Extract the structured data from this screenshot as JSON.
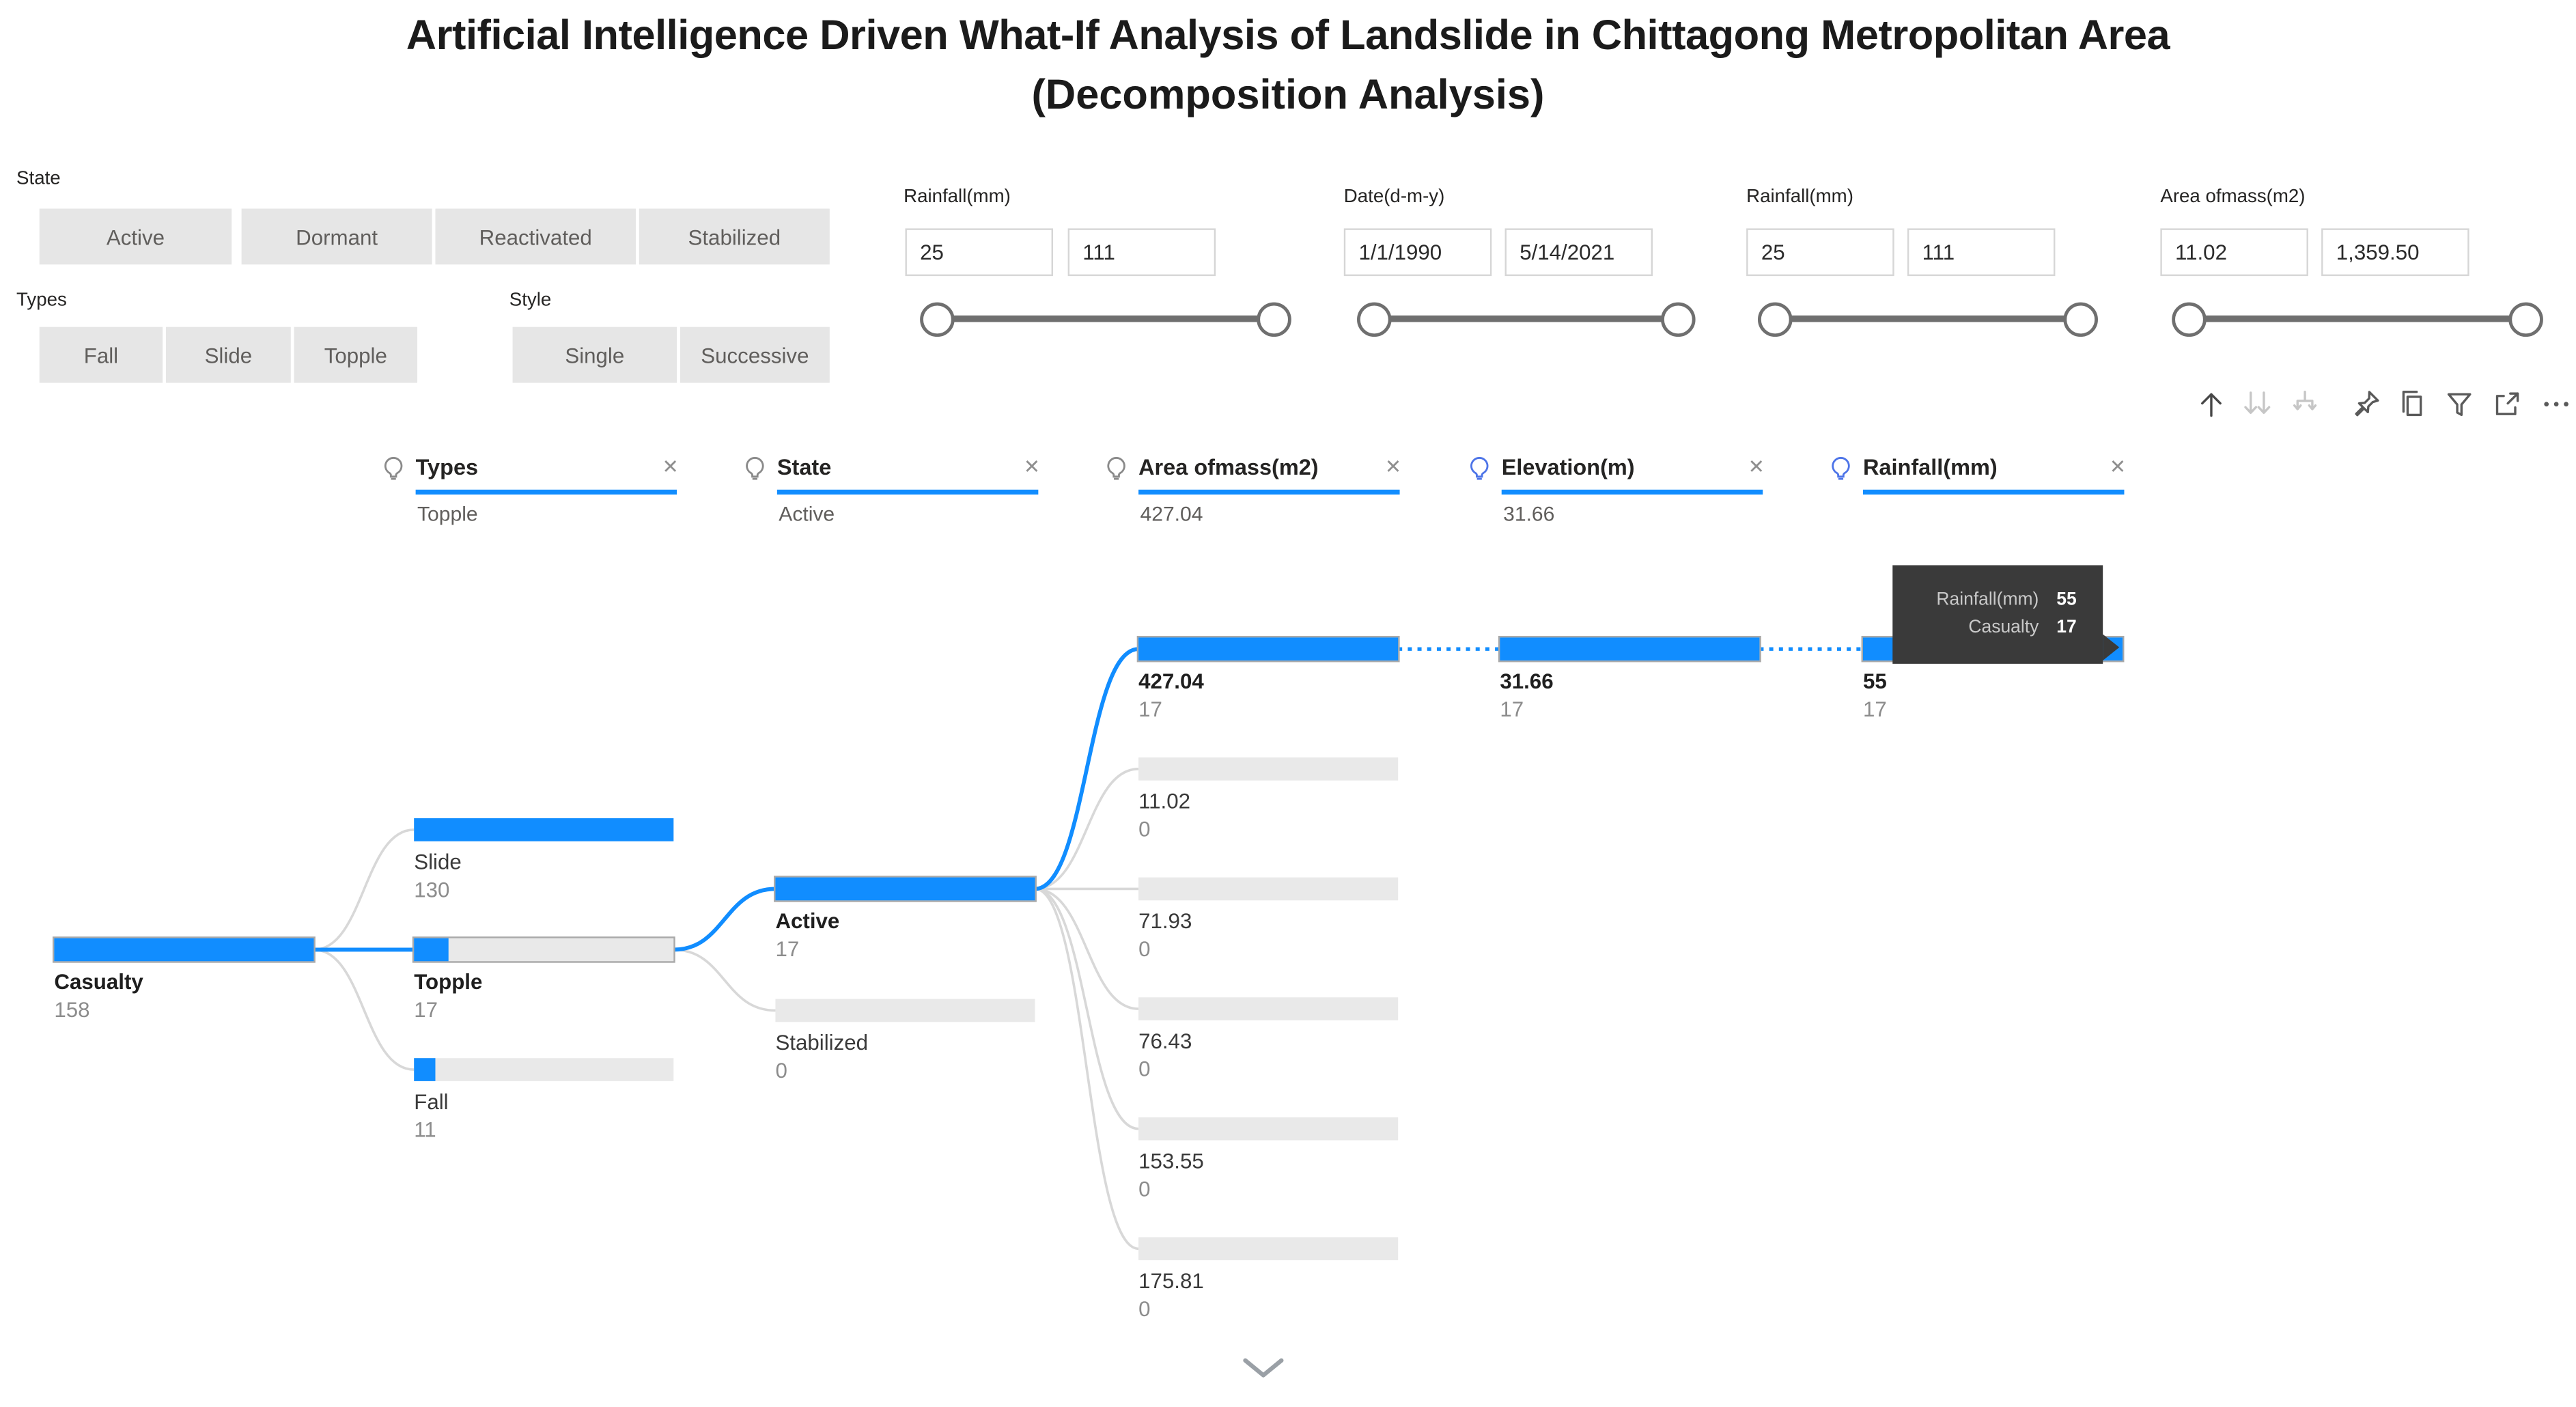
{
  "title": {
    "line1": "Artificial Intelligence Driven What-If Analysis of Landslide in Chittagong Metropolitan Area",
    "line2": "(Decomposition Analysis)"
  },
  "colors": {
    "accent": "#118DFF",
    "bar_empty": "#e9e9e9",
    "tooltip_bg": "#3a3a3a"
  },
  "slicers": [
    {
      "label": "State",
      "options": [
        "Active",
        "Dormant",
        "Reactivated",
        "Stabilized"
      ]
    },
    {
      "label": "Types",
      "options": [
        "Fall",
        "Slide",
        "Topple"
      ]
    },
    {
      "label": "Style",
      "options": [
        "Single",
        "Successive"
      ]
    }
  ],
  "range_sliders": [
    {
      "label": "Rainfall(mm)",
      "min": "25",
      "max": "111"
    },
    {
      "label": "Date(d-m-y)",
      "min": "1/1/1990",
      "max": "5/14/2021"
    },
    {
      "label": "Rainfall(mm)",
      "min": "25",
      "max": "111"
    },
    {
      "label": "Area ofmass(m2)",
      "min": "11.02",
      "max": "1,359.50"
    }
  ],
  "toolbar": {
    "icons": [
      "drill-up",
      "drill-down",
      "expand-next-level",
      "pin-visual",
      "copy-visual",
      "filters",
      "focus-mode",
      "more-options"
    ]
  },
  "tree": {
    "measure": "Casualty",
    "columns": [
      {
        "id": "types",
        "label": "Types",
        "selected_value": "Topple",
        "bulb": "gray"
      },
      {
        "id": "state",
        "label": "State",
        "selected_value": "Active",
        "bulb": "gray"
      },
      {
        "id": "area",
        "label": "Area ofmass(m2)",
        "selected_value": "427.04",
        "bulb": "gray"
      },
      {
        "id": "elevation",
        "label": "Elevation(m)",
        "selected_value": "31.66",
        "bulb": "blue"
      },
      {
        "id": "rainfall",
        "label": "Rainfall(mm)",
        "selected_value": "",
        "bulb": "blue"
      }
    ],
    "nodes": [
      {
        "id": "root",
        "col": "root",
        "row": 0,
        "label": "Casualty",
        "value": "158",
        "fill": 1,
        "selected": true,
        "bordered": true
      },
      {
        "id": "slide",
        "col": "types",
        "row": 0,
        "label": "Slide",
        "value": "130",
        "fill": 1,
        "selected": false,
        "bordered": false
      },
      {
        "id": "topple",
        "col": "types",
        "row": 1,
        "label": "Topple",
        "value": "17",
        "fill": 0.13,
        "selected": true,
        "bordered": true
      },
      {
        "id": "fall",
        "col": "types",
        "row": 2,
        "label": "Fall",
        "value": "11",
        "fill": 0.085,
        "selected": false,
        "bordered": false
      },
      {
        "id": "active",
        "col": "state",
        "row": 0,
        "label": "Active",
        "value": "17",
        "fill": 1,
        "selected": true,
        "bordered": true
      },
      {
        "id": "stabilized",
        "col": "state",
        "row": 1,
        "label": "Stabilized",
        "value": "0",
        "fill": 0,
        "selected": false,
        "bordered": false
      },
      {
        "id": "area-427",
        "col": "area",
        "row": 0,
        "label": "427.04",
        "value": "17",
        "fill": 1,
        "selected": true,
        "bordered": true
      },
      {
        "id": "area-11",
        "col": "area",
        "row": 1,
        "label": "11.02",
        "value": "0",
        "fill": 0,
        "selected": false,
        "bordered": false
      },
      {
        "id": "area-71",
        "col": "area",
        "row": 2,
        "label": "71.93",
        "value": "0",
        "fill": 0,
        "selected": false,
        "bordered": false
      },
      {
        "id": "area-76",
        "col": "area",
        "row": 3,
        "label": "76.43",
        "value": "0",
        "fill": 0,
        "selected": false,
        "bordered": false
      },
      {
        "id": "area-153",
        "col": "area",
        "row": 4,
        "label": "153.55",
        "value": "0",
        "fill": 0,
        "selected": false,
        "bordered": false
      },
      {
        "id": "area-175",
        "col": "area",
        "row": 5,
        "label": "175.81",
        "value": "0",
        "fill": 0,
        "selected": false,
        "bordered": false
      },
      {
        "id": "elev-31",
        "col": "elevation",
        "row": 0,
        "label": "31.66",
        "value": "17",
        "fill": 1,
        "selected": true,
        "bordered": true
      },
      {
        "id": "rain-55",
        "col": "rainfall",
        "row": 0,
        "label": "55",
        "value": "17",
        "fill": 1,
        "selected": true,
        "bordered": true
      }
    ],
    "edges": [
      {
        "from": "root",
        "to": "slide",
        "style": "normal"
      },
      {
        "from": "root",
        "to": "fall",
        "style": "normal"
      },
      {
        "from": "topple",
        "to": "stabilized",
        "style": "normal"
      },
      {
        "from": "active",
        "to": "area-11",
        "style": "normal"
      },
      {
        "from": "active",
        "to": "area-71",
        "style": "normal"
      },
      {
        "from": "active",
        "to": "area-76",
        "style": "normal"
      },
      {
        "from": "active",
        "to": "area-153",
        "style": "normal"
      },
      {
        "from": "active",
        "to": "area-175",
        "style": "normal"
      },
      {
        "from": "root",
        "to": "topple",
        "style": "highlight"
      },
      {
        "from": "topple",
        "to": "active",
        "style": "highlight"
      },
      {
        "from": "active",
        "to": "area-427",
        "style": "highlight"
      },
      {
        "from": "area-427",
        "to": "elev-31",
        "style": "dotted"
      },
      {
        "from": "elev-31",
        "to": "rain-55",
        "style": "dotted"
      }
    ]
  },
  "tooltip": {
    "rows": [
      {
        "label": "Rainfall(mm)",
        "value": "55"
      },
      {
        "label": "Casualty",
        "value": "17"
      }
    ]
  }
}
